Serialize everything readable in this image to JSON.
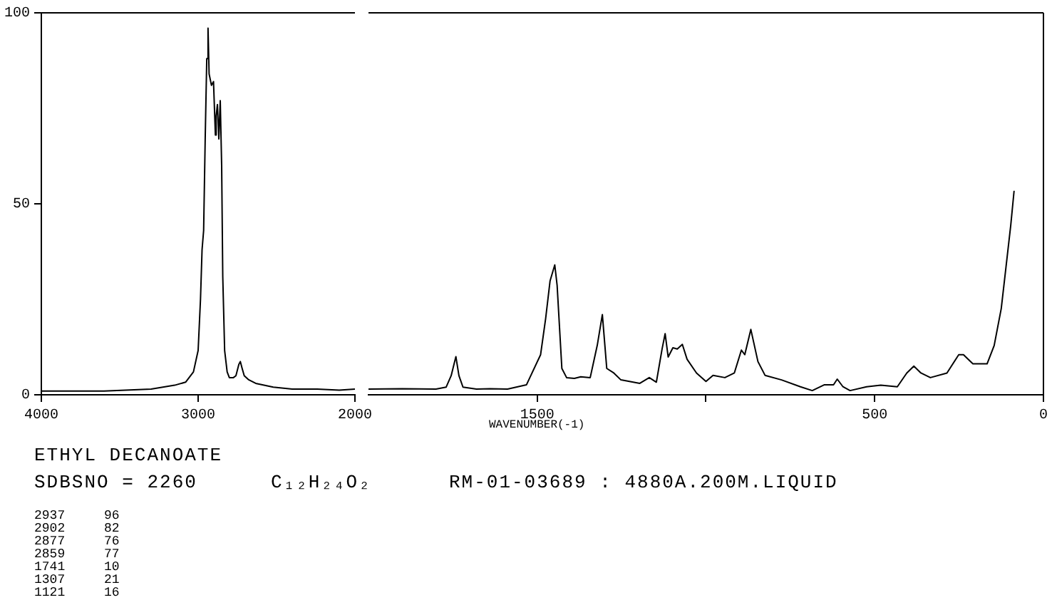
{
  "chart_data": [
    {
      "type": "line",
      "title": "ETHYL DECANOATE",
      "annotations": [
        "SDBSNO = 2260",
        "C₁₂H₂₄O₂",
        "RM-01-03689 : 4880A.200M.LIQUID",
        "2937 96",
        "2902 82",
        "2877 76",
        "2859 77",
        "1741 10",
        "1307 21",
        "1121 16"
      ],
      "x": [
        4000,
        3600,
        3300,
        3150,
        3080,
        3030,
        3000,
        2985,
        2975,
        2965,
        2955,
        2945,
        2937,
        2930,
        2915,
        2902,
        2890,
        2885,
        2877,
        2868,
        2859,
        2850,
        2843,
        2831,
        2815,
        2801,
        2775,
        2759,
        2740,
        2731,
        2720,
        2706,
        2680,
        2633,
        2521,
        2400,
        2241,
        2100,
        2000
      ],
      "series": [
        {
          "color": "#000000",
          "values": [
            1,
            1,
            1.5,
            2.5,
            3.3,
            6,
            11.6,
            25,
            38,
            43,
            67,
            88,
            96,
            84,
            81,
            82,
            68,
            73,
            76,
            67,
            77,
            60,
            31,
            11.6,
            6,
            4.5,
            4.5,
            5,
            8,
            8.7,
            7,
            5,
            4,
            3,
            2,
            1.5,
            1.5,
            1.2,
            1.5
          ]
        }
      ],
      "xlim": [
        4000,
        2000
      ],
      "xticks": [
        4000,
        3000,
        2000
      ],
      "ylim": [
        0,
        100
      ],
      "yticks": [
        0,
        50,
        100
      ],
      "grid": false,
      "legend": false,
      "marker": "none",
      "line_style": "solid"
    },
    {
      "type": "line",
      "xlabel": "WAVENUMBER(-1)",
      "x": [
        2000,
        1900,
        1800,
        1770,
        1755,
        1741,
        1732,
        1720,
        1680,
        1640,
        1588,
        1532,
        1490,
        1475,
        1462,
        1448,
        1441,
        1427,
        1413,
        1390,
        1371,
        1343,
        1322,
        1307,
        1294,
        1273,
        1252,
        1196,
        1168,
        1147,
        1130,
        1121,
        1112,
        1098,
        1085,
        1070,
        1056,
        1028,
        1000,
        979,
        944,
        916,
        895,
        885,
        867,
        846,
        825,
        776,
        720,
        685,
        650,
        622,
        611,
        594,
        573,
        524,
        482,
        433,
        405,
        384,
        363,
        335,
        286,
        251,
        237,
        209,
        167,
        146,
        125,
        111,
        97,
        87
      ],
      "series": [
        {
          "color": "#000000",
          "values": [
            1.5,
            1.6,
            1.5,
            2,
            5,
            10,
            5,
            2,
            1.5,
            1.6,
            1.5,
            2.6,
            10.5,
            20,
            29.8,
            34,
            28.6,
            6.9,
            4.5,
            4.3,
            4.7,
            4.5,
            13,
            21,
            6.9,
            5.7,
            3.9,
            3,
            4.5,
            3.3,
            12,
            16,
            9.9,
            12.3,
            12,
            13.2,
            9.3,
            5.7,
            3.5,
            5.1,
            4.5,
            5.7,
            11.7,
            10.5,
            17.1,
            8.7,
            5.1,
            3.9,
            2.1,
            1.1,
            2.6,
            2.6,
            4.1,
            2.1,
            1.1,
            2.1,
            2.5,
            2.1,
            5.7,
            7.5,
            5.7,
            4.5,
            5.7,
            10.5,
            10.5,
            8.1,
            8.1,
            12.9,
            22.6,
            33.4,
            44.3,
            53.4
          ]
        }
      ],
      "xlim": [
        2000,
        0
      ],
      "xticks": [
        1500,
        {
          "value": 1000,
          "label": null
        },
        500,
        0
      ],
      "ylim": [
        0,
        100
      ],
      "tick_labels": "x",
      "grid": false,
      "legend": false,
      "marker": "none",
      "line_style": "solid"
    }
  ]
}
